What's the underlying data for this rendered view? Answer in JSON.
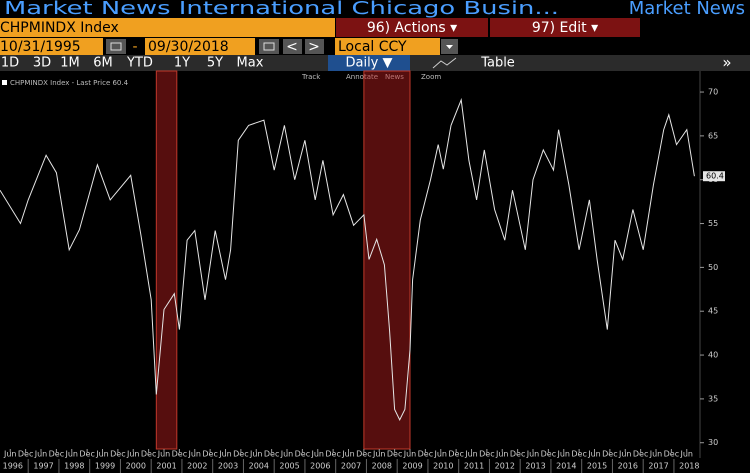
{
  "header": {
    "title": "Market News International Chicago Busin...",
    "source": "Market News",
    "ticker": "CHPMINDX Index",
    "actions": "96) Actions ▾",
    "edit": "97) Edit ▾"
  },
  "controls": {
    "start_date": "10/31/1995",
    "dash": "-",
    "end_date": "09/30/2018",
    "prev": "<",
    "next": ">",
    "currency": "Local CCY",
    "periods": [
      "1D",
      "3D",
      "1M",
      "6M",
      "YTD",
      "1Y",
      "5Y",
      "Max"
    ],
    "frequency": "Daily ▼",
    "table": "Table",
    "more": "»"
  },
  "toolbar": [
    "Track",
    "Annotate",
    "News",
    "Zoom"
  ],
  "chart_data": {
    "type": "line",
    "legend": "CHPMINDX Index - Last Price 60.4",
    "color": "#e6e6e6",
    "last_price": 60.4,
    "x": [
      "1996-02",
      "1996-10",
      "1997-01",
      "1997-08",
      "1997-12",
      "1998-05",
      "1998-09",
      "1999-04",
      "1999-09",
      "2000-05",
      "2000-09",
      "2001-01",
      "2001-03",
      "2001-06",
      "2001-10",
      "2001-12",
      "2002-03",
      "2002-06",
      "2002-10",
      "2003-02",
      "2003-06",
      "2003-08",
      "2003-11",
      "2004-03",
      "2004-09",
      "2005-01",
      "2005-05",
      "2005-09",
      "2006-01",
      "2006-05",
      "2006-08",
      "2006-12",
      "2007-04",
      "2007-08",
      "2007-12",
      "2008-02",
      "2008-05",
      "2008-08",
      "2008-10",
      "2008-12",
      "2009-02",
      "2009-04",
      "2009-06",
      "2009-07",
      "2009-10",
      "2010-02",
      "2010-05",
      "2010-07",
      "2010-10",
      "2011-02",
      "2011-05",
      "2011-08",
      "2011-11",
      "2012-03",
      "2012-07",
      "2012-10",
      "2013-03",
      "2013-06",
      "2013-10",
      "2014-02",
      "2014-04",
      "2014-08",
      "2014-12",
      "2015-04",
      "2015-07",
      "2015-11",
      "2016-02",
      "2016-05",
      "2016-09",
      "2017-01",
      "2017-05",
      "2017-09",
      "2017-11",
      "2018-02",
      "2018-06",
      "2018-09"
    ],
    "values": [
      58.8,
      55,
      57.7,
      62.8,
      60.8,
      52,
      54.3,
      61.7,
      57.7,
      60.5,
      53.7,
      46.3,
      35.5,
      45.2,
      47,
      42.9,
      53.1,
      54.2,
      46.3,
      54.2,
      48.6,
      52,
      64.5,
      66.2,
      66.8,
      61.1,
      66.2,
      60,
      64.5,
      57.7,
      62.2,
      56,
      58.3,
      54.8,
      56,
      50.9,
      53.2,
      50.3,
      42.9,
      33.8,
      32.6,
      33.8,
      40.6,
      48.6,
      55.4,
      60,
      64,
      61.2,
      66.2,
      69.1,
      62.2,
      57.7,
      63.4,
      56.6,
      53.1,
      58.8,
      52,
      60,
      63.4,
      61.1,
      65.7,
      59.4,
      52,
      57.7,
      50.9,
      42.9,
      53.1,
      50.9,
      56.6,
      52,
      59.4,
      65.7,
      67.4,
      64,
      65.7,
      60.4
    ],
    "shaded_regions": [
      [
        "2001-03",
        "2001-11"
      ],
      [
        "2007-12",
        "2009-06"
      ]
    ],
    "xlim": [
      "1996-02",
      "2018-10"
    ],
    "xticks": [
      {
        "value": "1996-06",
        "label": "Jun"
      },
      {
        "value": "1996-12",
        "label": "Dec"
      },
      {
        "value": "1997-06",
        "label": "Jun"
      },
      {
        "value": "1997-12",
        "label": "Dec"
      },
      {
        "value": "1998-06",
        "label": "Jun"
      },
      {
        "value": "1998-12",
        "label": "Dec"
      },
      {
        "value": "1999-06",
        "label": "Jun"
      },
      {
        "value": "1999-12",
        "label": "Dec"
      },
      {
        "value": "2000-06",
        "label": "Jun"
      },
      {
        "value": "2000-12",
        "label": "Dec"
      },
      {
        "value": "2001-06",
        "label": "Jun"
      },
      {
        "value": "2001-12",
        "label": "Dec"
      },
      {
        "value": "2002-06",
        "label": "Jun"
      },
      {
        "value": "2002-12",
        "label": "Dec"
      },
      {
        "value": "2003-06",
        "label": "Jun"
      },
      {
        "value": "2003-12",
        "label": "Dec"
      },
      {
        "value": "2004-06",
        "label": "Jun"
      },
      {
        "value": "2004-12",
        "label": "Dec"
      },
      {
        "value": "2005-06",
        "label": "Jun"
      },
      {
        "value": "2005-12",
        "label": "Dec"
      },
      {
        "value": "2006-06",
        "label": "Jun"
      },
      {
        "value": "2006-12",
        "label": "Dec"
      },
      {
        "value": "2007-06",
        "label": "Jun"
      },
      {
        "value": "2007-12",
        "label": "Dec"
      },
      {
        "value": "2008-06",
        "label": "Jun"
      },
      {
        "value": "2008-12",
        "label": "Dec"
      },
      {
        "value": "2009-06",
        "label": "Jun"
      },
      {
        "value": "2009-12",
        "label": "Dec"
      },
      {
        "value": "2010-06",
        "label": "Jun"
      },
      {
        "value": "2010-12",
        "label": "Dec"
      },
      {
        "value": "2011-06",
        "label": "Jun"
      },
      {
        "value": "2011-12",
        "label": "Dec"
      },
      {
        "value": "2012-06",
        "label": "Jun"
      },
      {
        "value": "2012-12",
        "label": "Dec"
      },
      {
        "value": "2013-06",
        "label": "Jun"
      },
      {
        "value": "2013-12",
        "label": "Dec"
      },
      {
        "value": "2014-06",
        "label": "Jun"
      },
      {
        "value": "2014-12",
        "label": "Dec"
      },
      {
        "value": "2015-06",
        "label": "Jun"
      },
      {
        "value": "2015-12",
        "label": "Dec"
      },
      {
        "value": "2016-06",
        "label": "Jun"
      },
      {
        "value": "2016-12",
        "label": "Dec"
      },
      {
        "value": "2017-06",
        "label": "Jun"
      },
      {
        "value": "2017-12",
        "label": "Dec"
      },
      {
        "value": "2018-06",
        "label": "Jun"
      }
    ],
    "years": [
      1996,
      1997,
      1998,
      1999,
      2000,
      2001,
      2002,
      2003,
      2004,
      2005,
      2006,
      2007,
      2008,
      2009,
      2010,
      2011,
      2012,
      2013,
      2014,
      2015,
      2016,
      2017,
      2018
    ],
    "ylim": [
      28.6,
      72.4
    ],
    "yticks": [
      30,
      35,
      40,
      45,
      50,
      55,
      60,
      65,
      70
    ]
  }
}
